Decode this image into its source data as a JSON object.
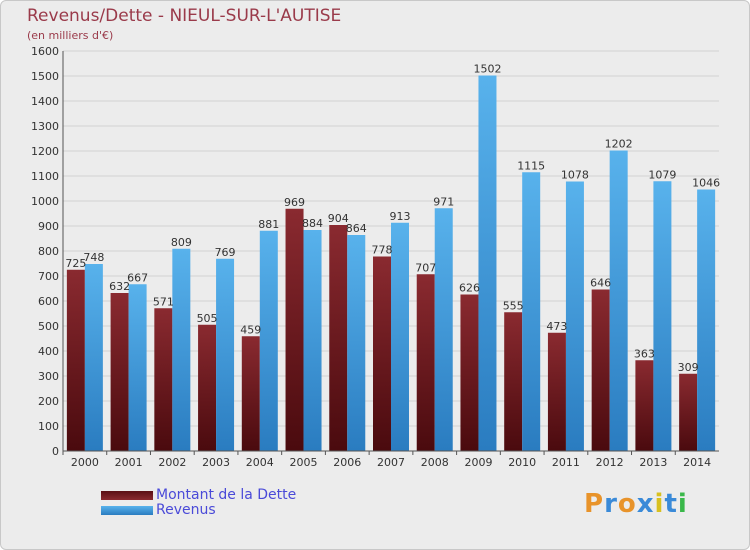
{
  "chart_data": {
    "type": "bar",
    "title": "Revenus/Dette - NIEUL-SUR-L'AUTISE",
    "subtitle": "(en milliers d'€)",
    "categories": [
      "2000",
      "2001",
      "2002",
      "2003",
      "2004",
      "2005",
      "2006",
      "2007",
      "2008",
      "2009",
      "2010",
      "2011",
      "2012",
      "2013",
      "2014"
    ],
    "series": [
      {
        "name": "Montant de la Dette",
        "color": "#7a1f24",
        "values": [
          725,
          632,
          571,
          505,
          459,
          969,
          904,
          778,
          707,
          626,
          555,
          473,
          646,
          363,
          309
        ]
      },
      {
        "name": "Revenus",
        "color": "#3a9ee0",
        "values": [
          748,
          667,
          809,
          769,
          881,
          884,
          864,
          913,
          971,
          1502,
          1115,
          1078,
          1202,
          1079,
          1046
        ]
      }
    ],
    "ylim": [
      0,
      1600
    ],
    "yticks": [
      0,
      100,
      200,
      300,
      400,
      500,
      600,
      700,
      800,
      900,
      1000,
      1100,
      1200,
      1300,
      1400,
      1500,
      1600
    ],
    "grid": true,
    "legend_position": "bottom-left"
  },
  "legend": {
    "debt_label": "Montant de la Dette",
    "revenue_label": "Revenus"
  },
  "logo": {
    "text": "Proxiti",
    "letters": [
      {
        "ch": "P",
        "color": "#e8932a"
      },
      {
        "ch": "r",
        "color": "#3a8ad8"
      },
      {
        "ch": "o",
        "color": "#e8932a"
      },
      {
        "ch": "x",
        "color": "#3a8ad8"
      },
      {
        "ch": "i",
        "color": "#d8c020"
      },
      {
        "ch": "t",
        "color": "#3a8ad8"
      },
      {
        "ch": "i",
        "color": "#3ab84a"
      }
    ]
  }
}
